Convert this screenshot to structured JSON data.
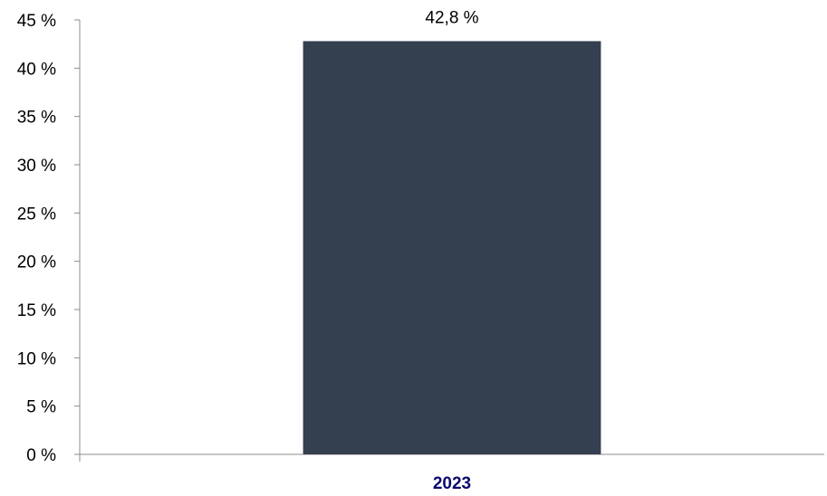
{
  "colors": {
    "bar": "#343f50",
    "axis": "#8c8c8c",
    "category_label": "#0b0b6e",
    "text": "#000000"
  },
  "chart_data": {
    "type": "bar",
    "title": "",
    "xlabel": "",
    "ylabel": "",
    "categories": [
      "2023"
    ],
    "values": [
      42.8
    ],
    "data_labels": [
      "42,8 %"
    ],
    "ylim": [
      0,
      45
    ],
    "yticks": [
      0,
      5,
      10,
      15,
      20,
      25,
      30,
      35,
      40,
      45
    ],
    "ytick_labels": [
      "0 %",
      "5 %",
      "10 %",
      "15 %",
      "20 %",
      "25 %",
      "30 %",
      "35 %",
      "40 %",
      "45 %"
    ],
    "grid": false,
    "legend": "none"
  }
}
